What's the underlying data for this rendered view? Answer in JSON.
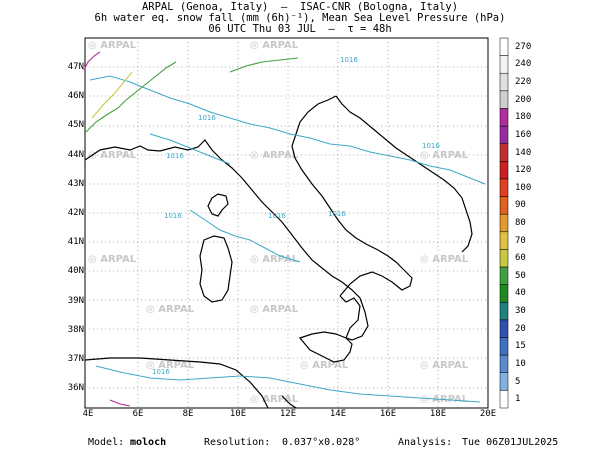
{
  "header": {
    "line1": "ARPAL (Genoa, Italy)  —  ISAC-CNR (Bologna, Italy)",
    "line2": "6h water eq. snow fall (mm (6h)⁻¹), Mean Sea Level Pressure (hPa)",
    "line3": "06 UTC Thu 03 JUL  —  τ = 48h"
  },
  "y_ticks": [
    "47N",
    "46N",
    "45N",
    "44N",
    "43N",
    "42N",
    "41N",
    "40N",
    "39N",
    "38N",
    "37N",
    "36N"
  ],
  "x_ticks": [
    "4E",
    "6E",
    "8E",
    "10E",
    "12E",
    "14E",
    "16E",
    "18E",
    "20E"
  ],
  "watermark": "ARPAL",
  "isobar_labels": [
    "1016",
    "1016",
    "1016",
    "1016",
    "1016",
    "1016",
    "1016",
    "1016"
  ],
  "colorbar": {
    "levels": [
      "270",
      "240",
      "220",
      "200",
      "180",
      "160",
      "140",
      "120",
      "100",
      "90",
      "80",
      "70",
      "60",
      "50",
      "40",
      "30",
      "20",
      "15",
      "10",
      "5",
      "1"
    ],
    "colors": [
      "#ffffff",
      "#f2f2f2",
      "#e0e0e0",
      "#cfcfcf",
      "#b22ea0",
      "#9a2aa0",
      "#c03030",
      "#cc2020",
      "#e04020",
      "#e06020",
      "#e09a30",
      "#e0c040",
      "#c8c840",
      "#40a040",
      "#208820",
      "#208080",
      "#3050b0",
      "#4070c0",
      "#5a8ad0",
      "#80b0e0",
      "#ffffff"
    ]
  },
  "footer": {
    "model_label": "Model:",
    "model_value": "moloch",
    "resolution_label": "Resolution:",
    "resolution_value": "0.037°x0.028°",
    "analysis_label": "Analysis:",
    "analysis_value": "Tue 06Z01JUL2025"
  }
}
